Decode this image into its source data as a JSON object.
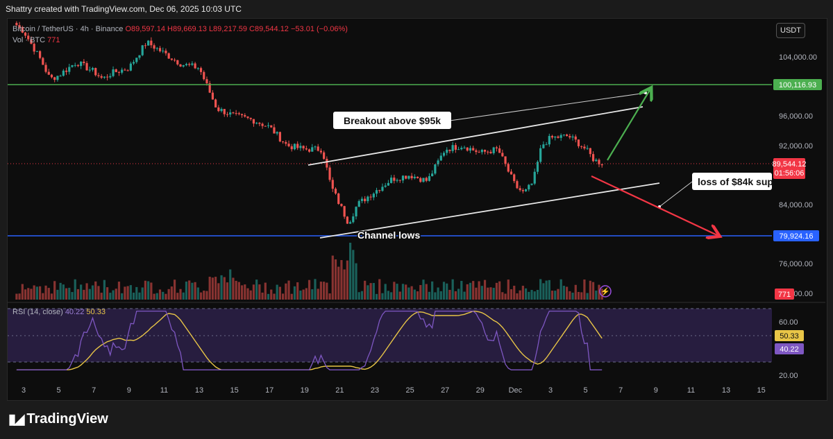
{
  "header": {
    "attribution": "Shattry created with TradingView.com, Dec 06, 2025 10:03 UTC"
  },
  "legend": {
    "symbol": "Bitcoin / TetherUS · 4h · Binance",
    "ohlc": "O89,597.14 H89,669.13 L89,217.59 C89,544.12 −53.01 (−0.06%)",
    "volume_label": "Vol · BTC",
    "volume_value": "771"
  },
  "rsi_legend": {
    "label": "RSI (14, close)",
    "rsi_value": "40.22",
    "ma_value": "50.33"
  },
  "currency": "USDT",
  "branding": "TradingView",
  "colors": {
    "up": "#26a69a",
    "down": "#ef5350",
    "resistance": "#4caf50",
    "support": "#2962ff",
    "rsi_line": "#7e57c2",
    "rsi_ma": "#e8c547"
  },
  "annotations": {
    "breakout": "Breakout above $95k",
    "channel_lows": "Channel lows",
    "loss_support": "loss of $84k sup"
  },
  "price_labels": {
    "resistance": "100,116.93",
    "current_price": "89,544.12",
    "countdown": "01:56:06",
    "support": "79,924.16",
    "volume": "771",
    "rsi_ma": "50.33",
    "rsi": "40.22"
  },
  "chart_data": {
    "type": "candlestick",
    "title": "Bitcoin / TetherUS · 4h · Binance",
    "price_axis": {
      "ticks": [
        "104,000.00",
        "96,000.00",
        "92,000.00",
        "84,000.00",
        "76,000.00",
        "72,000.00"
      ],
      "ylim": [
        71400,
        106000
      ]
    },
    "rsi_axis": {
      "ticks": [
        "60.00",
        "40.00",
        "20.00"
      ],
      "ylim": [
        12,
        75
      ],
      "band": [
        30,
        70
      ]
    },
    "x_ticks": [
      "3",
      "5",
      "7",
      "9",
      "11",
      "13",
      "15",
      "17",
      "19",
      "21",
      "23",
      "25",
      "27",
      "29",
      "Dec",
      "3",
      "5",
      "7",
      "9",
      "11",
      "13",
      "15"
    ],
    "levels": {
      "resistance": 100116.93,
      "support": 79924.16,
      "last": 89544.12
    },
    "close_path": [
      {
        "d": "Nov 2.5",
        "c": 108500
      },
      {
        "d": "Nov 3",
        "c": 107500
      },
      {
        "d": "Nov 4",
        "c": 103500
      },
      {
        "d": "Nov 4.5",
        "c": 101000
      },
      {
        "d": "Nov 5",
        "c": 101500
      },
      {
        "d": "Nov 6",
        "c": 103300
      },
      {
        "d": "Nov 7",
        "c": 102000
      },
      {
        "d": "Nov 7.5",
        "c": 101000
      },
      {
        "d": "Nov 8",
        "c": 101800
      },
      {
        "d": "Nov 9",
        "c": 102500
      },
      {
        "d": "Nov 10",
        "c": 106000
      },
      {
        "d": "Nov 11",
        "c": 104500
      },
      {
        "d": "Nov 12",
        "c": 103000
      },
      {
        "d": "Nov 13",
        "c": 102500
      },
      {
        "d": "Nov 14",
        "c": 97000
      },
      {
        "d": "Nov 15",
        "c": 96000
      },
      {
        "d": "Nov 16",
        "c": 95500
      },
      {
        "d": "Nov 17",
        "c": 94500
      },
      {
        "d": "Nov 18",
        "c": 92000
      },
      {
        "d": "Nov 19",
        "c": 91500
      },
      {
        "d": "Nov 20",
        "c": 91500
      },
      {
        "d": "Nov 20.5",
        "c": 86500
      },
      {
        "d": "Nov 21",
        "c": 84000
      },
      {
        "d": "Nov 21.5",
        "c": 81500
      },
      {
        "d": "Nov 22",
        "c": 84000
      },
      {
        "d": "Nov 23",
        "c": 85800
      },
      {
        "d": "Nov 24",
        "c": 87500
      },
      {
        "d": "Nov 25",
        "c": 88000
      },
      {
        "d": "Nov 26",
        "c": 87200
      },
      {
        "d": "Nov 27",
        "c": 91500
      },
      {
        "d": "Nov 28",
        "c": 92000
      },
      {
        "d": "Nov 29",
        "c": 91000
      },
      {
        "d": "Nov 30",
        "c": 91500
      },
      {
        "d": "Dec 1",
        "c": 86500
      },
      {
        "d": "Dec 1.5",
        "c": 85500
      },
      {
        "d": "Dec 2",
        "c": 87000
      },
      {
        "d": "Dec 2.5",
        "c": 92000
      },
      {
        "d": "Dec 3",
        "c": 93000
      },
      {
        "d": "Dec 4",
        "c": 93300
      },
      {
        "d": "Dec 4.5",
        "c": 92500
      },
      {
        "d": "Dec 5",
        "c": 91500
      },
      {
        "d": "Dec 5.5",
        "c": 90000
      },
      {
        "d": "Dec 6",
        "c": 89544
      }
    ]
  }
}
